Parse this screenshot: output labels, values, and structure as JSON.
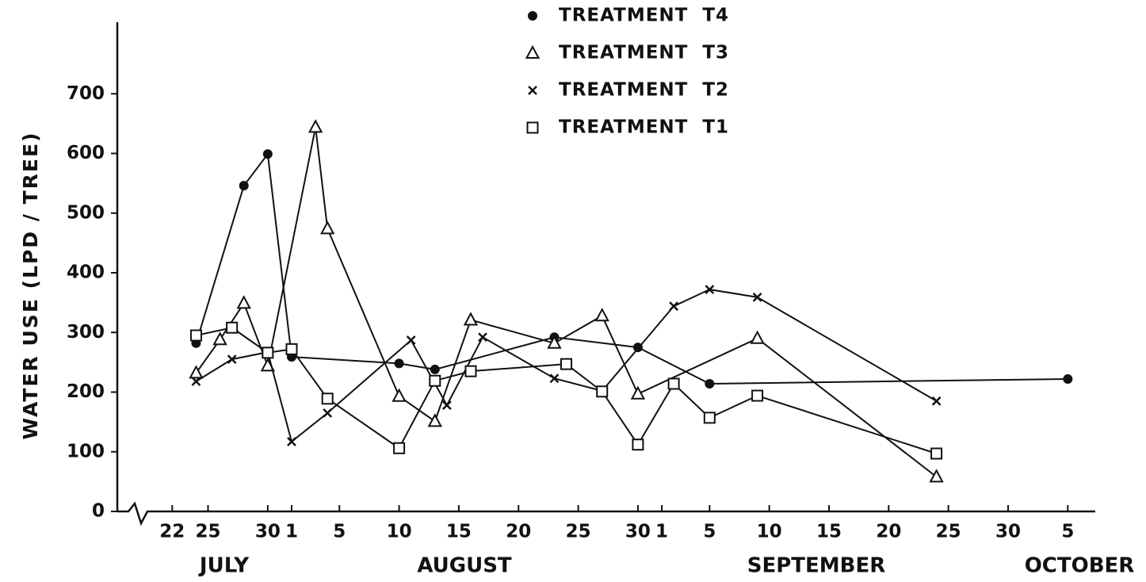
{
  "chart_data": {
    "type": "line",
    "ylabel": "WATER USE  (LPD / TREE)",
    "x_groups": [
      "JULY",
      "AUGUST",
      "SEPTEMBER",
      "OCTOBER"
    ],
    "xlim": [
      17.4,
      99.5
    ],
    "xticks": [
      22,
      25,
      30,
      {
        "value": 32,
        "label": "1"
      },
      {
        "value": 36,
        "label": "5"
      },
      {
        "value": 41,
        "label": "10"
      },
      {
        "value": 46,
        "label": "15"
      },
      {
        "value": 51,
        "label": "20"
      },
      {
        "value": 56,
        "label": "25"
      },
      {
        "value": 61,
        "label": "30"
      },
      {
        "value": 63,
        "label": "1"
      },
      {
        "value": 67,
        "label": "5"
      },
      {
        "value": 72,
        "label": "10"
      },
      {
        "value": 77,
        "label": "15"
      },
      {
        "value": 82,
        "label": "20"
      },
      {
        "value": 87,
        "label": "25"
      },
      {
        "value": 92,
        "label": "30"
      },
      {
        "value": 97,
        "label": "5"
      }
    ],
    "ylim": [
      0,
      820
    ],
    "yticks": [
      0,
      100,
      200,
      300,
      400,
      500,
      600,
      700
    ],
    "grid": false,
    "series": [
      {
        "name": "TREATMENT  T4",
        "color": "#111",
        "marker": "circle-filled",
        "x": [
          24,
          28,
          30,
          32,
          41,
          44,
          54,
          61,
          67,
          97
        ],
        "values": [
          282,
          546,
          599,
          259,
          248,
          238,
          292,
          275,
          214,
          222
        ]
      },
      {
        "name": "TREATMENT  T3",
        "color": "#111",
        "marker": "triangle",
        "x": [
          24,
          26,
          28,
          30,
          34,
          35,
          41,
          44,
          47,
          54,
          58,
          61,
          71,
          86
        ],
        "values": [
          232,
          288,
          349,
          244,
          644,
          474,
          193,
          151,
          321,
          282,
          328,
          197,
          290,
          58
        ]
      },
      {
        "name": "TREATMENT  T2",
        "color": "#111",
        "marker": "x",
        "x": [
          24,
          27,
          30,
          32,
          35,
          42,
          45,
          48,
          54,
          58,
          64,
          67,
          71,
          86
        ],
        "values": [
          218,
          255,
          267,
          117,
          165,
          287,
          178,
          292,
          223,
          202,
          344,
          372,
          359,
          185
        ]
      },
      {
        "name": "TREATMENT  T1",
        "color": "#111",
        "marker": "square",
        "x": [
          24,
          27,
          30,
          32,
          35,
          41,
          44,
          47,
          55,
          58,
          61,
          64,
          67,
          71,
          86
        ],
        "values": [
          295,
          308,
          266,
          272,
          189,
          106,
          219,
          235,
          247,
          201,
          112,
          214,
          157,
          194,
          97
        ]
      }
    ]
  }
}
